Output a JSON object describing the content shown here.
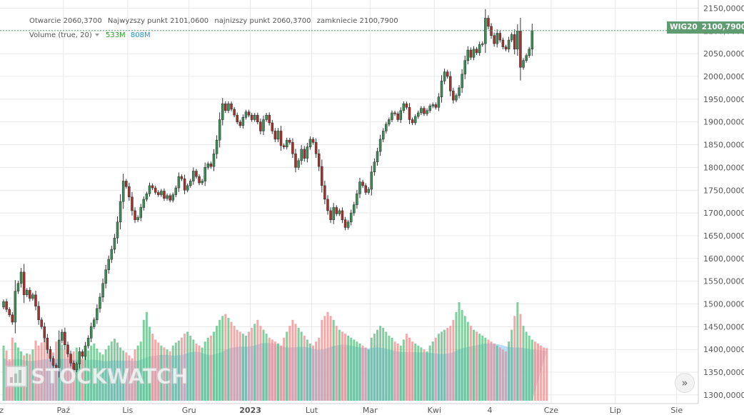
{
  "legend": {
    "open_label": "Otwarcie",
    "open_value": "2060,3700",
    "high_label": "Najwyzszy punkt",
    "high_value": "2101,0600",
    "low_label": "najnizszy punkt",
    "low_value": "2060,3700",
    "close_label": "zamkniecie",
    "close_value": "2100,7900",
    "volume_label": "Volume (true, 20)",
    "volume_value": "533M",
    "volume_ma_value": "808M"
  },
  "price_tag": {
    "symbol": "WIG20",
    "value": "2100,7900"
  },
  "watermark": "STOCKWATCH",
  "nav_button": "»",
  "colors": {
    "up": "#3c8d57",
    "down": "#a6312b",
    "vol_up": "#55bf7f",
    "vol_down": "#f28b8b",
    "vol_ma_fill": "#a9d3f2",
    "grid": "#e8e8e8",
    "tag": "#5f9c72"
  },
  "chart_data": {
    "type": "candlestick",
    "symbol": "WIG20",
    "y_axis": {
      "ylim": [
        1292,
        2157
      ],
      "ticks": [
        "1300,0000",
        "1350,0000",
        "1400,0000",
        "1450,0000",
        "1500,0000",
        "1550,0000",
        "1600,0000",
        "1650,0000",
        "1700,0000",
        "1750,0000",
        "1800,0000",
        "1850,0000",
        "1900,0000",
        "1950,0000",
        "2000,0000",
        "2050,0000",
        "2100,0000",
        "2150,0000"
      ],
      "tick_values": [
        1300,
        1350,
        1400,
        1450,
        1500,
        1550,
        1600,
        1650,
        1700,
        1750,
        1800,
        1850,
        1900,
        1950,
        2000,
        2050,
        2100,
        2150
      ]
    },
    "x_axis": {
      "labels": [
        "z",
        "Paź",
        "Lis",
        "Gru",
        "2023",
        "Lut",
        "Mar",
        "Kwi",
        "4",
        "Cze",
        "Lip",
        "Sie"
      ],
      "label_session_index": [
        -0.7,
        20.5,
        42.5,
        63.5,
        84.5,
        105.5,
        125.5,
        147.5,
        166.5,
        187.5,
        209.5,
        230.5
      ],
      "visible_sessions": 236
    },
    "last_price": 2100.79,
    "volume_axis_max": 1000,
    "closes": [
      1505,
      1488,
      1476,
      1460,
      1528,
      1545,
      1570,
      1520,
      1530,
      1512,
      1520,
      1495,
      1465,
      1450,
      1425,
      1400,
      1380,
      1365,
      1360,
      1420,
      1438,
      1410,
      1390,
      1370,
      1355,
      1368,
      1395,
      1385,
      1408,
      1425,
      1450,
      1465,
      1490,
      1515,
      1545,
      1575,
      1598,
      1620,
      1645,
      1680,
      1725,
      1770,
      1758,
      1735,
      1705,
      1685,
      1690,
      1712,
      1730,
      1742,
      1760,
      1755,
      1745,
      1740,
      1748,
      1732,
      1738,
      1728,
      1740,
      1755,
      1780,
      1775,
      1750,
      1760,
      1770,
      1792,
      1780,
      1766,
      1770,
      1800,
      1808,
      1802,
      1830,
      1860,
      1905,
      1940,
      1925,
      1940,
      1928,
      1915,
      1900,
      1892,
      1910,
      1922,
      1915,
      1905,
      1915,
      1900,
      1880,
      1905,
      1915,
      1898,
      1880,
      1862,
      1880,
      1848,
      1845,
      1860,
      1855,
      1830,
      1800,
      1815,
      1840,
      1820,
      1845,
      1862,
      1855,
      1830,
      1802,
      1760,
      1730,
      1705,
      1685,
      1712,
      1698,
      1705,
      1685,
      1668,
      1680,
      1700,
      1718,
      1742,
      1768,
      1760,
      1745,
      1752,
      1790,
      1812,
      1835,
      1862,
      1880,
      1895,
      1905,
      1920,
      1918,
      1905,
      1925,
      1940,
      1932,
      1905,
      1898,
      1912,
      1920,
      1930,
      1918,
      1925,
      1935,
      1938,
      1932,
      1955,
      1990,
      2010,
      2000,
      1968,
      1948,
      1958,
      1975,
      2005,
      2035,
      2058,
      2042,
      2060,
      2052,
      2070,
      2072,
      2128,
      2110,
      2090,
      2072,
      2095,
      2080,
      2065,
      2060,
      2080,
      2092,
      2060,
      2100,
      2020,
      2035,
      2046,
      2060,
      2101
    ],
    "ohlc_note": "",
    "volumes_M": [
      560,
      510,
      420,
      640,
      590,
      540,
      500,
      460,
      480,
      470,
      520,
      610,
      560,
      590,
      630,
      580,
      520,
      490,
      600,
      620,
      570,
      520,
      470,
      440,
      500,
      540,
      460,
      430,
      480,
      510,
      560,
      580,
      530,
      490,
      470,
      520,
      560,
      600,
      630,
      590,
      540,
      510,
      490,
      460,
      430,
      520,
      560,
      600,
      820,
      900,
      750,
      680,
      620,
      590,
      560,
      540,
      520,
      500,
      560,
      590,
      610,
      640,
      680,
      700,
      660,
      620,
      580,
      560,
      540,
      600,
      640,
      660,
      700,
      760,
      820,
      860,
      880,
      840,
      800,
      760,
      720,
      700,
      680,
      660,
      700,
      740,
      780,
      820,
      760,
      720,
      680,
      640,
      620,
      600,
      580,
      560,
      640,
      700,
      760,
      820,
      780,
      740,
      700,
      660,
      620,
      580,
      560,
      600,
      640,
      820,
      860,
      900,
      860,
      820,
      760,
      720,
      700,
      680,
      660,
      640,
      620,
      600,
      580,
      560,
      540,
      520,
      640,
      680,
      720,
      760,
      740,
      700,
      660,
      640,
      600,
      580,
      560,
      620,
      680,
      640,
      600,
      580,
      560,
      540,
      520,
      500,
      560,
      600,
      640,
      680,
      700,
      720,
      740,
      760,
      820,
      900,
      1000,
      920,
      860,
      800,
      760,
      720,
      700,
      680,
      660,
      640,
      620,
      600,
      580,
      560,
      540,
      520,
      500,
      600,
      720,
      860,
      1000,
      880,
      760,
      700,
      660,
      620,
      600,
      580,
      560,
      540,
      533
    ]
  }
}
